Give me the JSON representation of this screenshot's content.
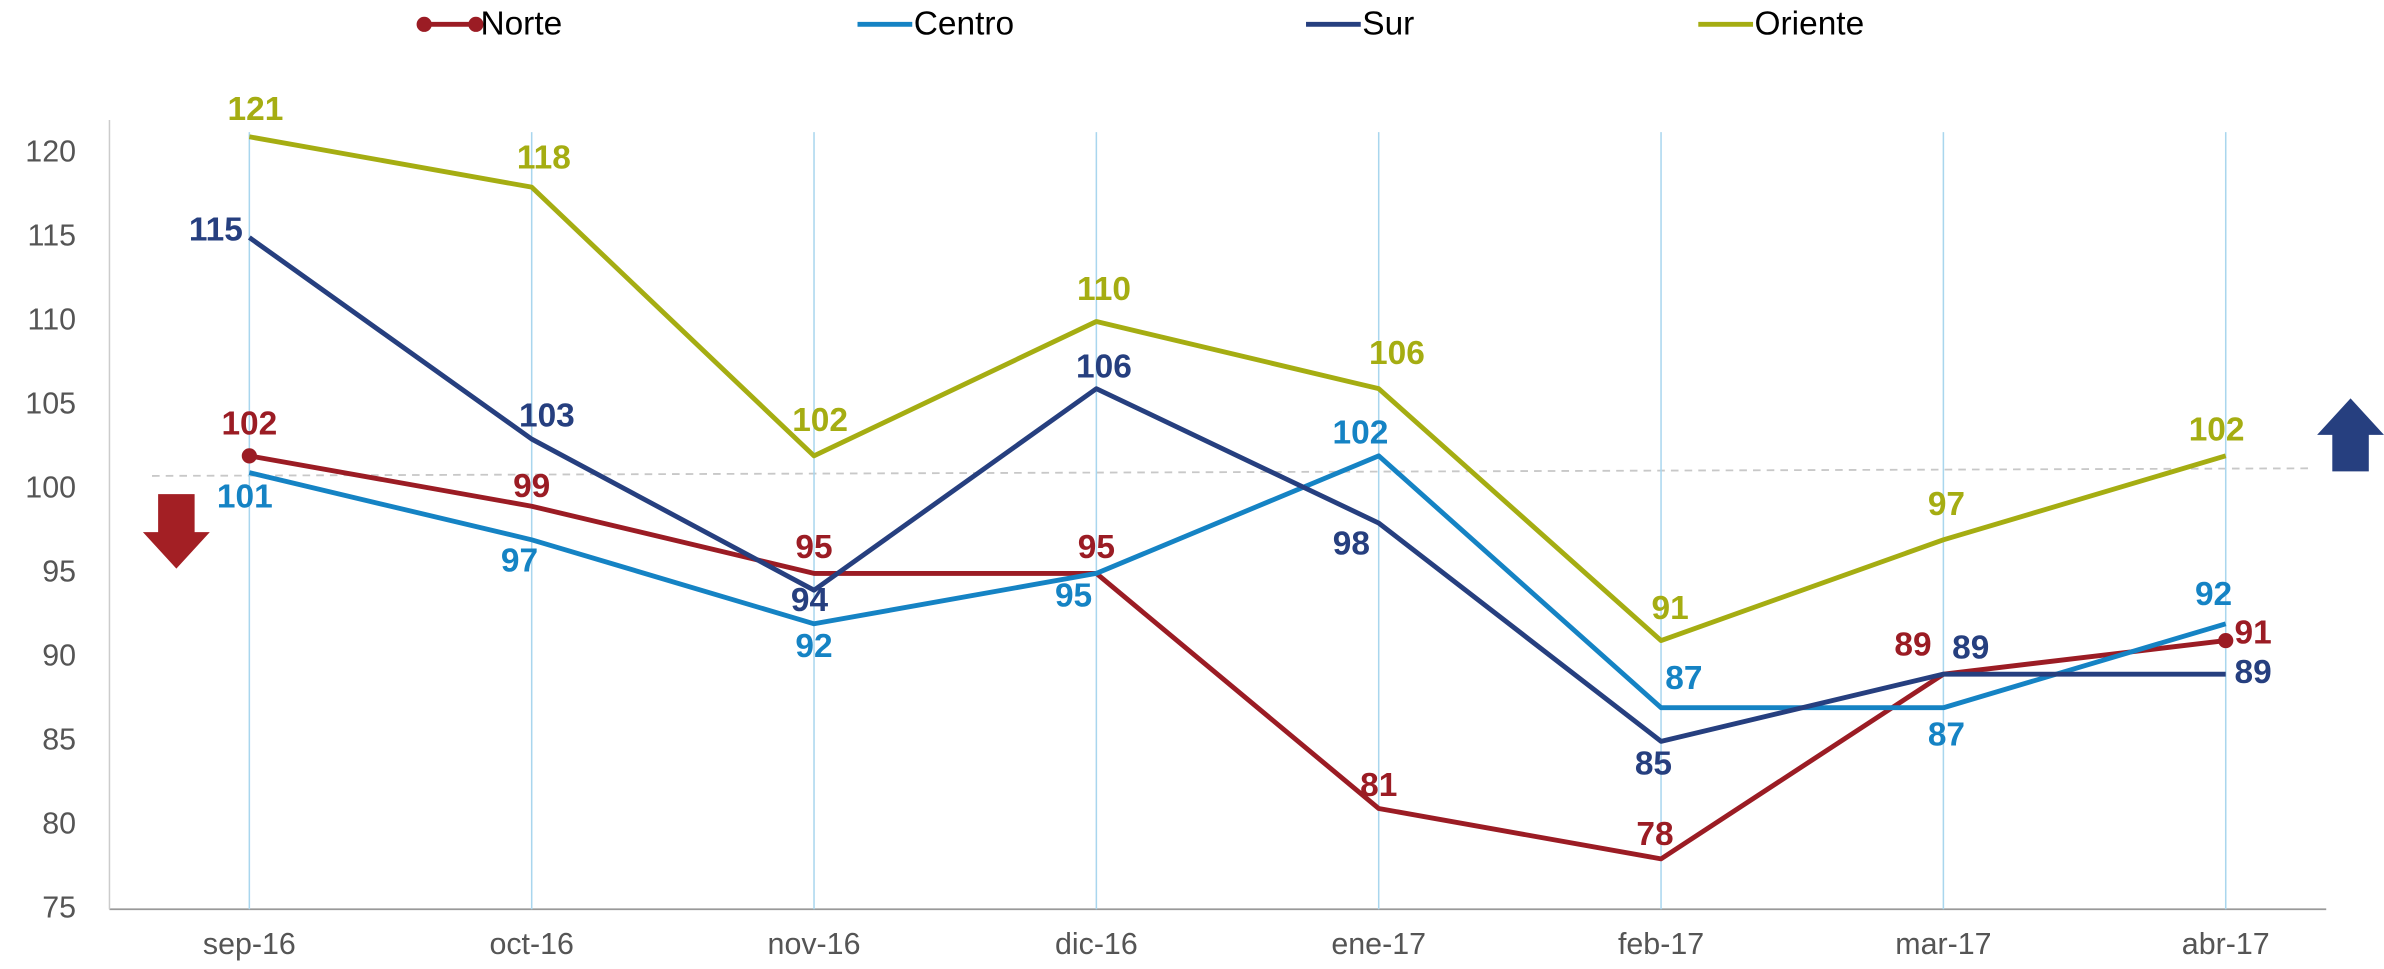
{
  "chart_data": {
    "type": "line",
    "categories": [
      "sep-16",
      "oct-16",
      "nov-16",
      "dic-16",
      "ene-17",
      "feb-17",
      "mar-17",
      "abr-17"
    ],
    "series": [
      {
        "name": "Norte",
        "color": "#9b1c24",
        "values": [
          102,
          99,
          95,
          95,
          81,
          78,
          89,
          91
        ]
      },
      {
        "name": "Centro",
        "color": "#1583c4",
        "values": [
          101,
          97,
          92,
          95,
          102,
          87,
          87,
          92
        ]
      },
      {
        "name": "Sur",
        "color": "#263f7f",
        "values": [
          115,
          103,
          94,
          106,
          98,
          85,
          89,
          89
        ]
      },
      {
        "name": "Oriente",
        "color": "#a5ad12",
        "values": [
          121,
          118,
          102,
          110,
          106,
          91,
          97,
          102
        ]
      }
    ],
    "ylim": [
      75,
      122
    ],
    "yticks": [
      75,
      80,
      85,
      90,
      95,
      100,
      105,
      110,
      115,
      120
    ],
    "grid": "x",
    "legend": "top"
  }
}
